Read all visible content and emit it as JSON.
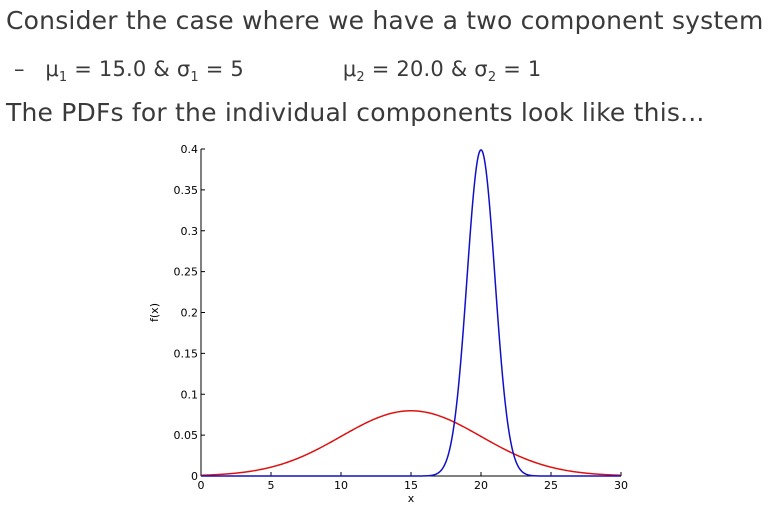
{
  "text": {
    "line1": "Consider the case where we have a two component system",
    "dash": "–",
    "mu1_sym": "μ",
    "mu1_sub": "1",
    "mu1_eq": " = 15.0 & σ",
    "sig1_sub": "1",
    "sig1_eq": " = 5",
    "mu2_sym": "μ",
    "mu2_sub": "2",
    "mu2_eq": " = 20.0 & σ",
    "sig2_sub": "2",
    "sig2_eq": " = 1",
    "line3": "The PDFs for the individual components look like this..."
  },
  "chart_data": {
    "type": "line",
    "xlabel": "x",
    "ylabel": "f(x)",
    "xlim": [
      0,
      30
    ],
    "ylim": [
      0,
      0.4
    ],
    "xticks": [
      "0",
      "5",
      "10",
      "15",
      "20",
      "25",
      "30"
    ],
    "yticks": [
      "0",
      "0.05",
      "0.1",
      "0.15",
      "0.2",
      "0.25",
      "0.3",
      "0.35",
      "0.4"
    ],
    "grid": false,
    "series": [
      {
        "distribution": "normal",
        "mean": 15.0,
        "sd": 5,
        "color": "#e01010"
      },
      {
        "distribution": "normal",
        "mean": 20.0,
        "sd": 1,
        "color": "#1010c8"
      }
    ]
  }
}
